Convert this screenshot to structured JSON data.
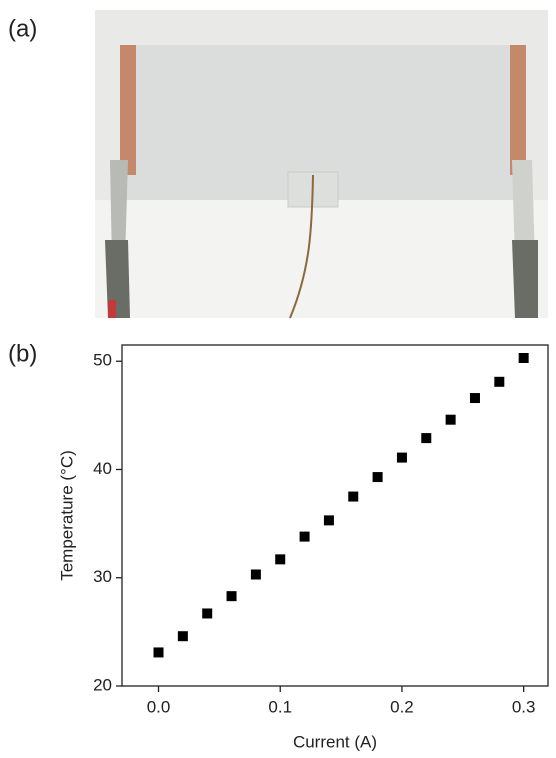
{
  "panel_labels": {
    "a": "(a)",
    "b": "(b)"
  },
  "chart_data": {
    "type": "scatter",
    "x_label": "Current (A)",
    "y_label": "Temperature (°C)",
    "x": [
      0,
      0.02,
      0.04,
      0.06,
      0.08,
      0.1,
      0.12,
      0.14,
      0.16,
      0.18,
      0.2,
      0.22,
      0.24,
      0.26,
      0.28,
      0.3
    ],
    "values": [
      23.1,
      24.6,
      26.7,
      28.3,
      30.3,
      31.7,
      33.8,
      35.3,
      37.5,
      39.3,
      41.1,
      42.9,
      44.6,
      46.6,
      48.1,
      50.3
    ],
    "color": "#000000",
    "marker": "square",
    "xlim": [
      -0.03,
      0.32
    ],
    "ylim": [
      20,
      51.5
    ],
    "xticks": [
      {
        "value": 0,
        "label": "0.0"
      },
      0.1,
      0.2,
      0.3
    ],
    "yticks": [
      20,
      30,
      40,
      50
    ],
    "grid": false
  }
}
